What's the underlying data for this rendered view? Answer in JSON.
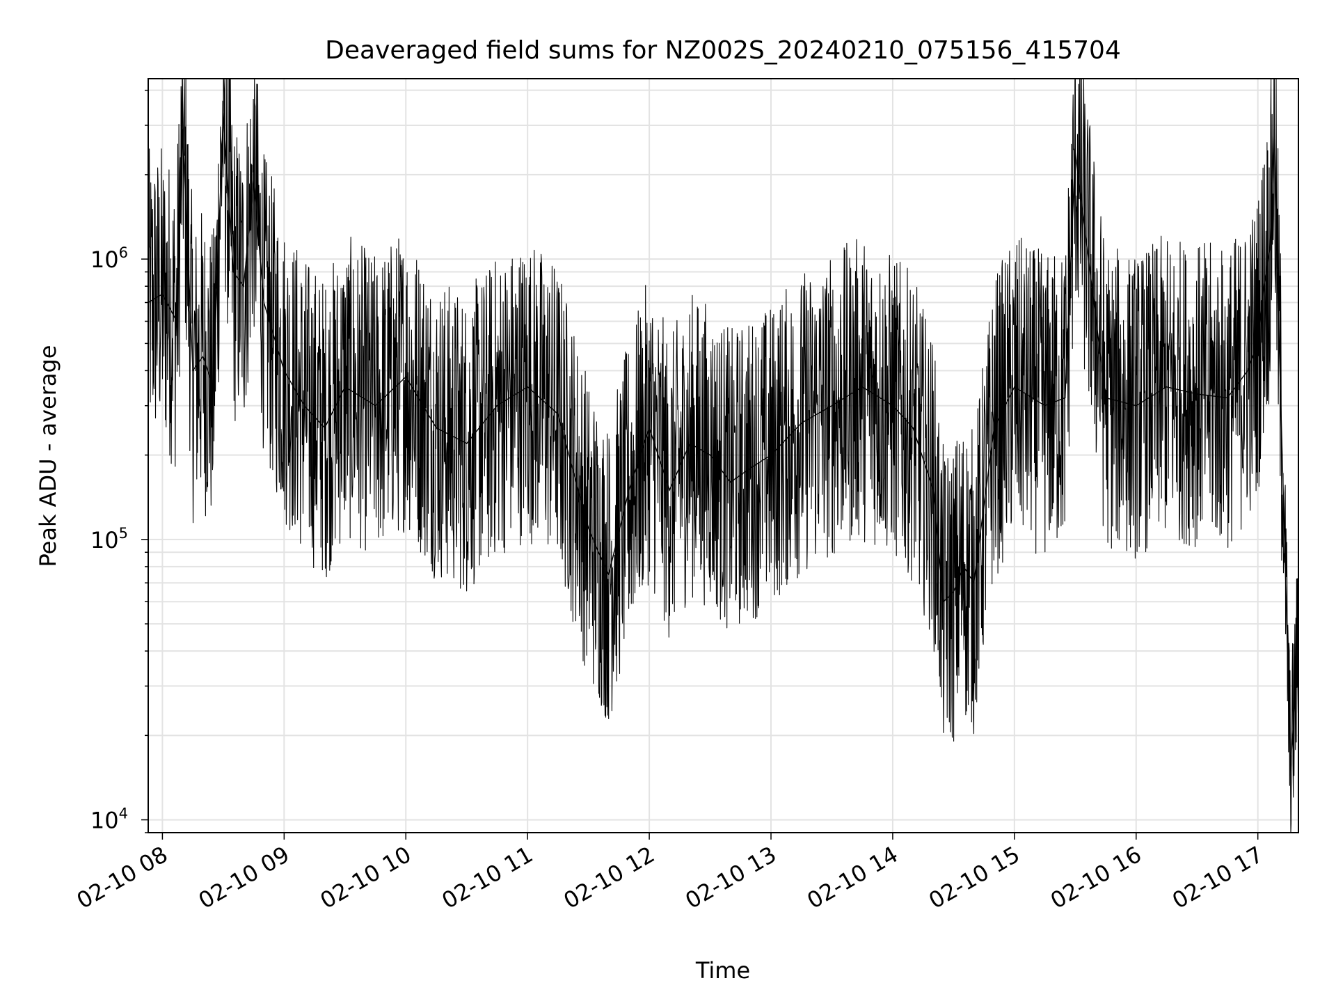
{
  "chart_data": {
    "type": "line",
    "title": "Deaveraged field sums for NZ002S_20240210_075156_415704",
    "xlabel": "Time",
    "ylabel": "Peak ADU - average",
    "x_ticks": [
      "02-10 08",
      "02-10 09",
      "02-10 10",
      "02-10 11",
      "02-10 12",
      "02-10 13",
      "02-10 14",
      "02-10 15",
      "02-10 16",
      "02-10 17"
    ],
    "y_ticks": [
      {
        "base": "10",
        "exp": "4",
        "value": 10000
      },
      {
        "base": "10",
        "exp": "5",
        "value": 100000
      },
      {
        "base": "10",
        "exp": "6",
        "value": 1000000
      }
    ],
    "xlim": [
      "2024-02-10 07:53",
      "2024-02-10 17:20"
    ],
    "ylim": [
      9000,
      4400000
    ],
    "y_scale": "log",
    "grid": true,
    "line_color": "#000000",
    "series": [
      {
        "x": [
          "2024-02-10 07:53",
          "2024-02-10 08:00",
          "2024-02-10 08:07",
          "2024-02-10 08:10",
          "2024-02-10 08:15",
          "2024-02-10 08:20",
          "2024-02-10 08:25",
          "2024-02-10 08:30",
          "2024-02-10 08:35",
          "2024-02-10 08:40",
          "2024-02-10 08:45",
          "2024-02-10 08:50",
          "2024-02-10 09:00",
          "2024-02-10 09:10",
          "2024-02-10 09:20",
          "2024-02-10 09:30",
          "2024-02-10 09:45",
          "2024-02-10 10:00",
          "2024-02-10 10:15",
          "2024-02-10 10:30",
          "2024-02-10 10:45",
          "2024-02-10 11:00",
          "2024-02-10 11:15",
          "2024-02-10 11:30",
          "2024-02-10 11:35",
          "2024-02-10 11:40",
          "2024-02-10 11:50",
          "2024-02-10 12:00",
          "2024-02-10 12:10",
          "2024-02-10 12:20",
          "2024-02-10 12:30",
          "2024-02-10 12:40",
          "2024-02-10 12:50",
          "2024-02-10 13:00",
          "2024-02-10 13:15",
          "2024-02-10 13:30",
          "2024-02-10 13:45",
          "2024-02-10 14:00",
          "2024-02-10 14:10",
          "2024-02-10 14:20",
          "2024-02-10 14:25",
          "2024-02-10 14:30",
          "2024-02-10 14:35",
          "2024-02-10 14:40",
          "2024-02-10 14:50",
          "2024-02-10 15:00",
          "2024-02-10 15:15",
          "2024-02-10 15:25",
          "2024-02-10 15:30",
          "2024-02-10 15:45",
          "2024-02-10 16:00",
          "2024-02-10 16:15",
          "2024-02-10 16:30",
          "2024-02-10 16:45",
          "2024-02-10 16:55",
          "2024-02-10 17:00",
          "2024-02-10 17:03",
          "2024-02-10 17:06",
          "2024-02-10 17:08",
          "2024-02-10 17:10",
          "2024-02-10 17:12",
          "2024-02-10 17:14",
          "2024-02-10 17:16",
          "2024-02-10 17:18",
          "2024-02-10 17:20"
        ],
        "y": [
          700000,
          750000,
          600000,
          2900000,
          400000,
          450000,
          350000,
          3300000,
          900000,
          800000,
          1900000,
          700000,
          400000,
          300000,
          250000,
          350000,
          300000,
          380000,
          250000,
          220000,
          300000,
          350000,
          280000,
          110000,
          90000,
          75000,
          150000,
          250000,
          150000,
          220000,
          200000,
          160000,
          180000,
          200000,
          260000,
          300000,
          350000,
          300000,
          250000,
          150000,
          60000,
          65000,
          80000,
          70000,
          250000,
          350000,
          300000,
          320000,
          2400000,
          320000,
          300000,
          350000,
          330000,
          320000,
          400000,
          500000,
          800000,
          1100000,
          2900000,
          700000,
          200000,
          60000,
          15000,
          25000,
          45000
        ]
      }
    ]
  }
}
